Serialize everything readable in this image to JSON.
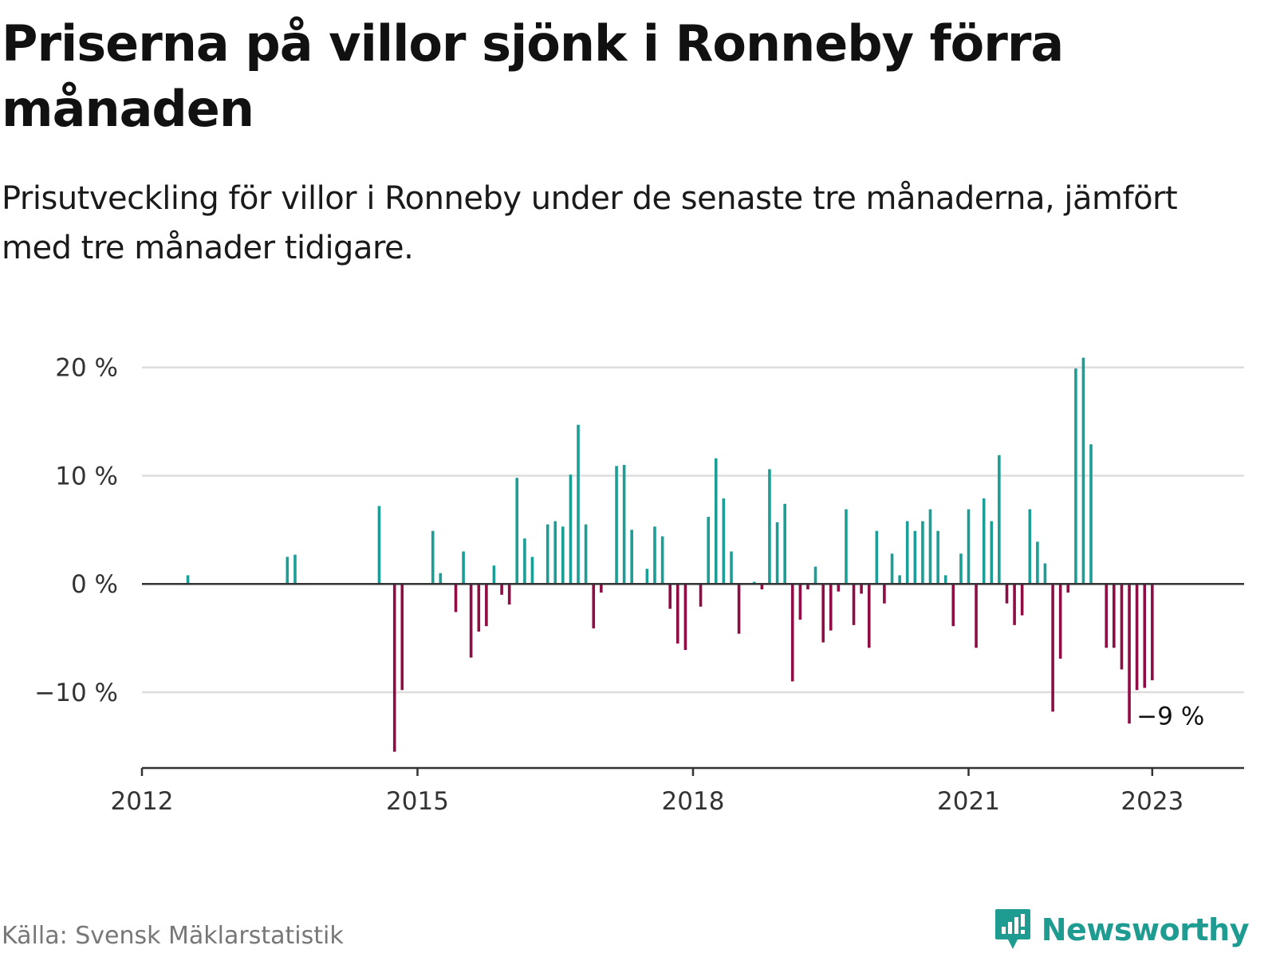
{
  "title": "Priserna på villor sjönk i Ronneby förra månaden",
  "subtitle": "Prisutveckling för villor i Ronneby under de senaste tre månaderna, jämfört med tre månader tidigare.",
  "source": "Källa: Svensk Mäklarstatistik",
  "logo": "Newsworthy",
  "colors": {
    "positive": "#1a9e96",
    "negative": "#8e0d45",
    "grid": "#dddddd",
    "axis": "#333333"
  },
  "chart_data": {
    "type": "bar",
    "title": "",
    "xlabel": "",
    "ylabel": "",
    "ylim": [
      -17,
      23
    ],
    "xlim": [
      2012.0,
      2024.0
    ],
    "grid": true,
    "y_ticks": [
      {
        "value": 20,
        "label": "20 %"
      },
      {
        "value": 10,
        "label": "10 %"
      },
      {
        "value": 0,
        "label": "0 %"
      },
      {
        "value": -10,
        "label": "−10 %"
      }
    ],
    "x_ticks": [
      {
        "value": 2012,
        "label": "2012"
      },
      {
        "value": 2015,
        "label": "2015"
      },
      {
        "value": 2018,
        "label": "2018"
      },
      {
        "value": 2021,
        "label": "2021"
      },
      {
        "value": 2023,
        "label": "2023"
      }
    ],
    "annotation": {
      "x": 2022.917,
      "y": -9,
      "text": "−9 %"
    },
    "x": [
      2012.5,
      2013.583,
      2013.667,
      2014.583,
      2014.75,
      2014.833,
      2015.167,
      2015.25,
      2015.417,
      2015.5,
      2015.583,
      2015.667,
      2015.75,
      2015.833,
      2015.917,
      2016.0,
      2016.083,
      2016.167,
      2016.25,
      2016.417,
      2016.5,
      2016.583,
      2016.667,
      2016.75,
      2016.833,
      2016.917,
      2017.0,
      2017.167,
      2017.25,
      2017.333,
      2017.5,
      2017.583,
      2017.667,
      2017.75,
      2017.833,
      2017.917,
      2018.083,
      2018.167,
      2018.25,
      2018.333,
      2018.417,
      2018.5,
      2018.667,
      2018.75,
      2018.833,
      2018.917,
      2019.0,
      2019.083,
      2019.167,
      2019.25,
      2019.333,
      2019.417,
      2019.5,
      2019.583,
      2019.667,
      2019.75,
      2019.833,
      2019.917,
      2020.0,
      2020.083,
      2020.167,
      2020.25,
      2020.333,
      2020.417,
      2020.5,
      2020.583,
      2020.667,
      2020.75,
      2020.833,
      2020.917,
      2021.0,
      2021.083,
      2021.167,
      2021.25,
      2021.333,
      2021.417,
      2021.5,
      2021.583,
      2021.667,
      2021.75,
      2021.833,
      2021.917,
      2022.0,
      2022.083,
      2022.167,
      2022.25,
      2022.333,
      2022.5,
      2022.583,
      2022.667,
      2022.75,
      2022.833,
      2022.917,
      2023.0
    ],
    "values": [
      0.8,
      2.5,
      2.7,
      7.2,
      -15.5,
      -9.8,
      4.9,
      1.0,
      -2.6,
      3.0,
      -6.8,
      -4.4,
      -3.9,
      1.7,
      -1.0,
      -1.9,
      9.8,
      4.2,
      2.5,
      5.5,
      5.8,
      5.3,
      10.1,
      14.7,
      5.5,
      -4.1,
      -0.8,
      10.9,
      11.0,
      5.0,
      1.4,
      5.3,
      4.4,
      -2.3,
      -5.5,
      -6.1,
      -2.1,
      6.2,
      11.6,
      7.9,
      3.0,
      -4.6,
      0.2,
      -0.5,
      10.6,
      5.7,
      7.4,
      -9.0,
      -3.3,
      -0.5,
      1.6,
      -5.4,
      -4.3,
      -0.7,
      6.9,
      -3.8,
      -0.9,
      -5.9,
      4.9,
      -1.8,
      2.8,
      0.8,
      5.8,
      4.9,
      5.8,
      6.9,
      4.9,
      0.8,
      -3.9,
      2.8,
      6.9,
      -5.9,
      7.9,
      5.8,
      11.9,
      -1.8,
      -3.8,
      -2.9,
      6.9,
      3.9,
      1.9,
      -11.8,
      -6.9,
      -0.8,
      19.9,
      20.9,
      12.9,
      -5.9,
      -5.9,
      -7.9,
      -12.9,
      -9.8,
      -9.6,
      -8.9
    ]
  }
}
